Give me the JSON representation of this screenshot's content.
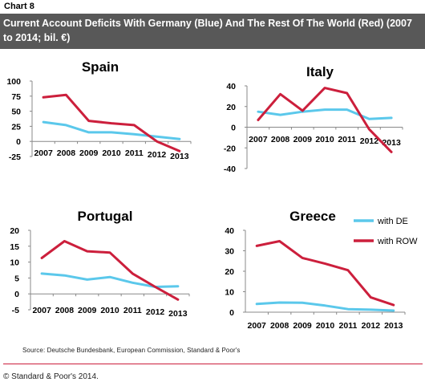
{
  "chart_label": "Chart 8",
  "header_title": "Current Account Deficits With Germany (Blue) And The Rest Of The World (Red) (2007 to 2014; bil. €)",
  "source": "Source: Deutsche Bundesbank, European Commission, Standard & Poor's",
  "copyright": "© Standard & Poor's 2014.",
  "colors": {
    "de": "#5bc8eb",
    "row": "#cc1f3c"
  },
  "chart_data": [
    {
      "type": "line",
      "title": "Spain",
      "x": [
        "2007",
        "2008",
        "2009",
        "2010",
        "2011",
        "2012",
        "2013"
      ],
      "ylim": [
        -25,
        100
      ],
      "yticks": [
        -25,
        0,
        25,
        50,
        75,
        100
      ],
      "series": [
        {
          "key": "de",
          "values": [
            32,
            27,
            15,
            15,
            12,
            8,
            4
          ]
        },
        {
          "key": "row",
          "values": [
            73,
            77,
            34,
            30,
            27,
            0,
            -16
          ]
        }
      ]
    },
    {
      "type": "line",
      "title": "Italy",
      "x": [
        "2007",
        "2008",
        "2009",
        "2010",
        "2011",
        "2012",
        "2013"
      ],
      "ylim": [
        -40,
        40
      ],
      "yticks": [
        -40,
        -20,
        0,
        20,
        40
      ],
      "series": [
        {
          "key": "de",
          "values": [
            15,
            12,
            15,
            17,
            17,
            8,
            9
          ]
        },
        {
          "key": "row",
          "values": [
            7,
            32,
            16,
            38,
            33,
            -2,
            -24
          ]
        }
      ]
    },
    {
      "type": "line",
      "title": "Portugal",
      "x": [
        "2007",
        "2008",
        "2009",
        "2010",
        "2011",
        "2012",
        "2013"
      ],
      "ylim": [
        -5,
        20
      ],
      "yticks": [
        -5,
        0,
        5,
        10,
        15,
        20
      ],
      "series": [
        {
          "key": "de",
          "values": [
            6.4,
            5.8,
            4.5,
            5.3,
            3.5,
            2.2,
            2.4
          ]
        },
        {
          "key": "row",
          "values": [
            11.3,
            16.6,
            13.4,
            13.0,
            6.4,
            2.2,
            -1.8
          ]
        }
      ]
    },
    {
      "type": "line",
      "title": "Greece",
      "x": [
        "2007",
        "2008",
        "2009",
        "2010",
        "2011",
        "2012",
        "2013"
      ],
      "ylim": [
        0,
        40
      ],
      "yticks": [
        0,
        10,
        20,
        30,
        40
      ],
      "legend": [
        {
          "key": "de",
          "label": "with DE"
        },
        {
          "key": "row",
          "label": "with ROW"
        }
      ],
      "series": [
        {
          "key": "de",
          "values": [
            4,
            4.7,
            4.6,
            3.2,
            1.5,
            1.2,
            0.8
          ]
        },
        {
          "key": "row",
          "values": [
            32.4,
            34.7,
            26.5,
            23.7,
            20.5,
            7.2,
            3.5
          ]
        }
      ]
    }
  ]
}
